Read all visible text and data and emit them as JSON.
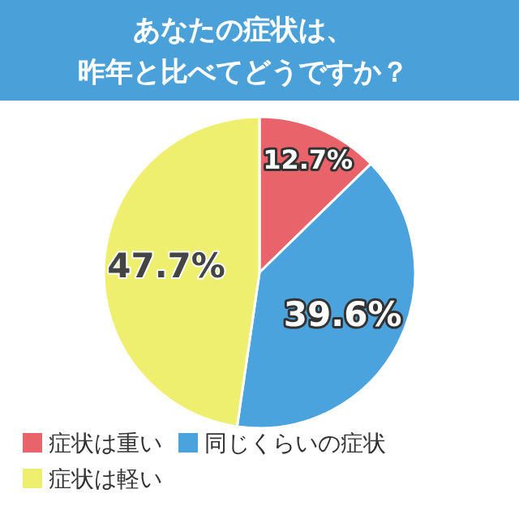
{
  "chart_data": {
    "type": "pie",
    "title": "あなたの症状は、昨年と比べてどうですか？",
    "value_labels": [
      "12.7%",
      "39.6%",
      "47.7%"
    ],
    "categories": [
      "症状は重い",
      "同じくらいの症状",
      "症状は軽い"
    ],
    "values": [
      12.7,
      39.6,
      47.7
    ],
    "colors": [
      "#e9636b",
      "#4ba3dd",
      "#eeee6f"
    ],
    "legend": "bottom"
  }
}
